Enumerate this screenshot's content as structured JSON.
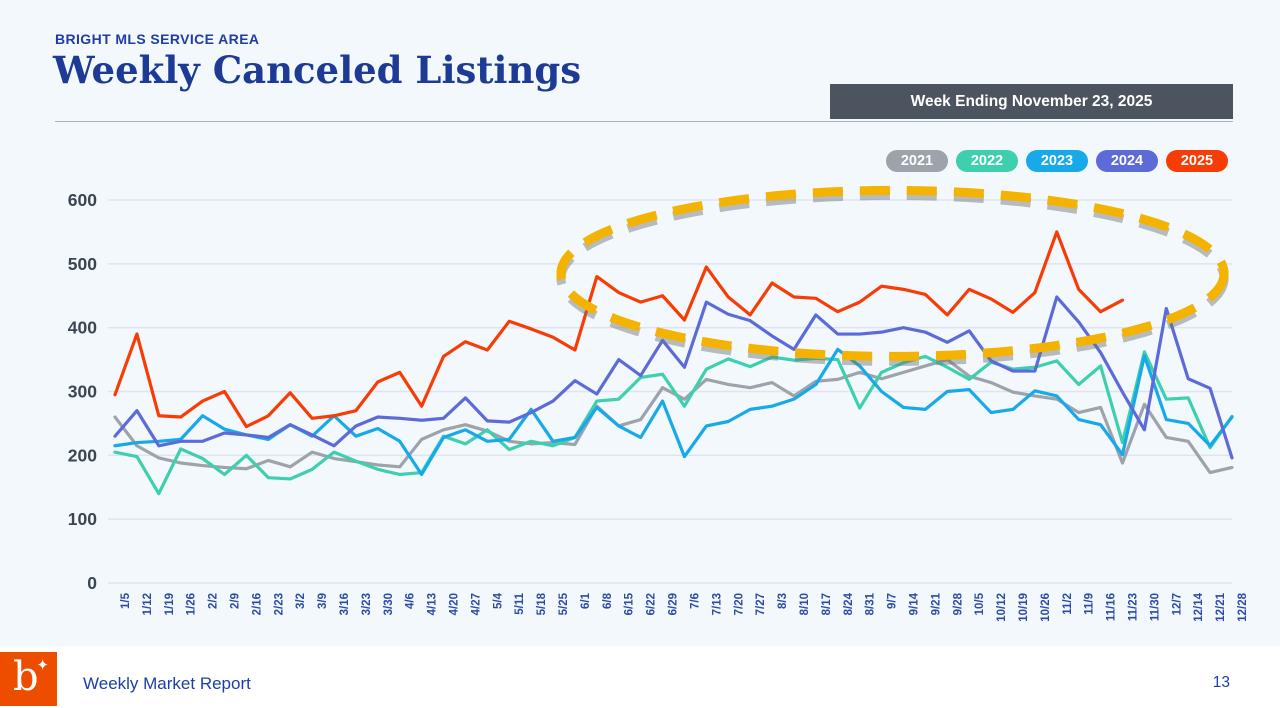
{
  "header": {
    "eyebrow": "BRIGHT MLS SERVICE AREA",
    "title": "Weekly Canceled Listings",
    "badge": "Week Ending November 23, 2025"
  },
  "legend": [
    {
      "label": "2021",
      "color": "#9ca3ab"
    },
    {
      "label": "2022",
      "color": "#3ecfae"
    },
    {
      "label": "2023",
      "color": "#18a9e9"
    },
    {
      "label": "2024",
      "color": "#5d6bd9"
    },
    {
      "label": "2025",
      "color": "#f83c05"
    }
  ],
  "footer": {
    "report_label": "Weekly Market Report",
    "page_number": "13",
    "logo_letter": "b",
    "logo_sparkle": "✦"
  },
  "chart_data": {
    "type": "line",
    "title": "Weekly Canceled Listings",
    "xlabel": "",
    "ylabel": "",
    "ylim": [
      0,
      600
    ],
    "yticks": [
      0,
      100,
      200,
      300,
      400,
      500,
      600
    ],
    "grid": "horizontal",
    "grid_color": "#dfe4f2",
    "axis_label_color_y": "#3a4651",
    "axis_label_color_x": "#2b4aa8",
    "legend_position": "top-right",
    "annotation": {
      "shape": "dashed-ellipse",
      "color": "#f5b301",
      "shadow_color": "#6d7278",
      "x_span": [
        "6/1",
        "12/21"
      ],
      "y_span": [
        355,
        615
      ]
    },
    "x": [
      "1/5",
      "1/12",
      "1/19",
      "1/26",
      "2/2",
      "2/9",
      "2/16",
      "2/23",
      "3/2",
      "3/9",
      "3/16",
      "3/23",
      "3/30",
      "4/6",
      "4/13",
      "4/20",
      "4/27",
      "5/4",
      "5/11",
      "5/18",
      "5/25",
      "6/1",
      "6/8",
      "6/15",
      "6/22",
      "6/29",
      "7/6",
      "7/13",
      "7/20",
      "7/27",
      "8/3",
      "8/10",
      "8/17",
      "8/24",
      "8/31",
      "9/7",
      "9/14",
      "9/21",
      "9/28",
      "10/5",
      "10/12",
      "10/19",
      "10/26",
      "11/2",
      "11/9",
      "11/16",
      "11/23",
      "11/30",
      "12/7",
      "12/14",
      "12/21",
      "12/28"
    ],
    "series": [
      {
        "name": "2021",
        "color": "#9ca3ab",
        "values": [
          260,
          215,
          196,
          188,
          184,
          181,
          179,
          192,
          182,
          205,
          195,
          190,
          185,
          182,
          225,
          240,
          248,
          238,
          222,
          218,
          220,
          217,
          277,
          246,
          256,
          306,
          288,
          319,
          311,
          306,
          314,
          293,
          316,
          319,
          330,
          320,
          330,
          340,
          350,
          324,
          314,
          299,
          293,
          288,
          267,
          275,
          188,
          280,
          228,
          222,
          173,
          181
        ]
      },
      {
        "name": "2022",
        "color": "#3ecfae",
        "values": [
          205,
          198,
          140,
          210,
          195,
          170,
          200,
          165,
          163,
          178,
          205,
          191,
          178,
          170,
          173,
          230,
          218,
          240,
          209,
          222,
          215,
          228,
          285,
          288,
          322,
          327,
          277,
          335,
          351,
          339,
          354,
          349,
          352,
          350,
          274,
          330,
          345,
          355,
          338,
          319,
          346,
          335,
          338,
          348,
          311,
          340,
          220,
          362,
          288,
          290,
          212,
          261
        ]
      },
      {
        "name": "2023",
        "color": "#18a9e9",
        "values": [
          215,
          220,
          222,
          225,
          262,
          241,
          232,
          225,
          248,
          230,
          262,
          230,
          242,
          222,
          170,
          228,
          240,
          222,
          225,
          272,
          222,
          228,
          275,
          246,
          228,
          285,
          198,
          246,
          253,
          272,
          277,
          288,
          311,
          366,
          340,
          300,
          275,
          272,
          300,
          303,
          267,
          272,
          301,
          293,
          256,
          248,
          201,
          356,
          256,
          250,
          215,
          260
        ]
      },
      {
        "name": "2024",
        "color": "#5d6bd9",
        "values": [
          230,
          270,
          215,
          222,
          222,
          235,
          232,
          228,
          248,
          232,
          215,
          246,
          260,
          258,
          255,
          258,
          290,
          254,
          252,
          267,
          285,
          317,
          296,
          350,
          325,
          380,
          338,
          440,
          421,
          411,
          387,
          366,
          420,
          390,
          390,
          393,
          400,
          393,
          377,
          395,
          348,
          332,
          332,
          448,
          409,
          361,
          299,
          240,
          430,
          320,
          305,
          196
        ]
      },
      {
        "name": "2025",
        "color": "#f83c05",
        "values": [
          295,
          390,
          262,
          260,
          285,
          300,
          245,
          262,
          298,
          258,
          262,
          270,
          315,
          330,
          277,
          355,
          378,
          365,
          410,
          398,
          385,
          365,
          480,
          455,
          440,
          450,
          412,
          495,
          448,
          420,
          470,
          448,
          446,
          425,
          440,
          465,
          460,
          452,
          420,
          460,
          445,
          424,
          455,
          550,
          460,
          425,
          443,
          null,
          null,
          null,
          null,
          null
        ]
      }
    ]
  }
}
